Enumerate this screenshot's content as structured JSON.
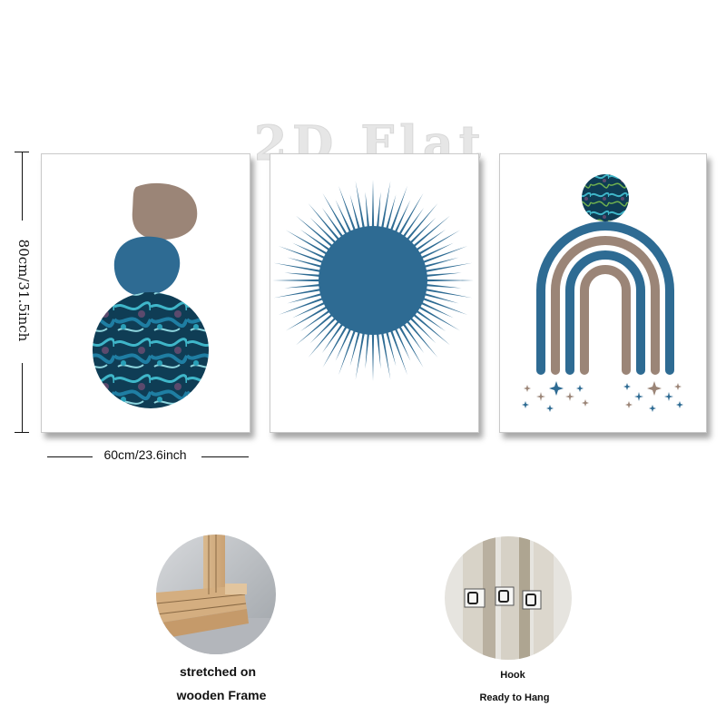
{
  "watermark": "2D Flat",
  "dimensions": {
    "height_label": "80cm/31.5inch",
    "width_label": "60cm/23.6inch"
  },
  "colors": {
    "blue": "#2e6b93",
    "taupe": "#9b8577",
    "marble_dark": "#0f3d55",
    "marble_light": "#3fb6c9"
  },
  "features": [
    {
      "lines": [
        "stretched on",
        "wooden Frame"
      ]
    },
    {
      "lines": [
        "Hook",
        "Ready to Hang"
      ]
    }
  ]
}
